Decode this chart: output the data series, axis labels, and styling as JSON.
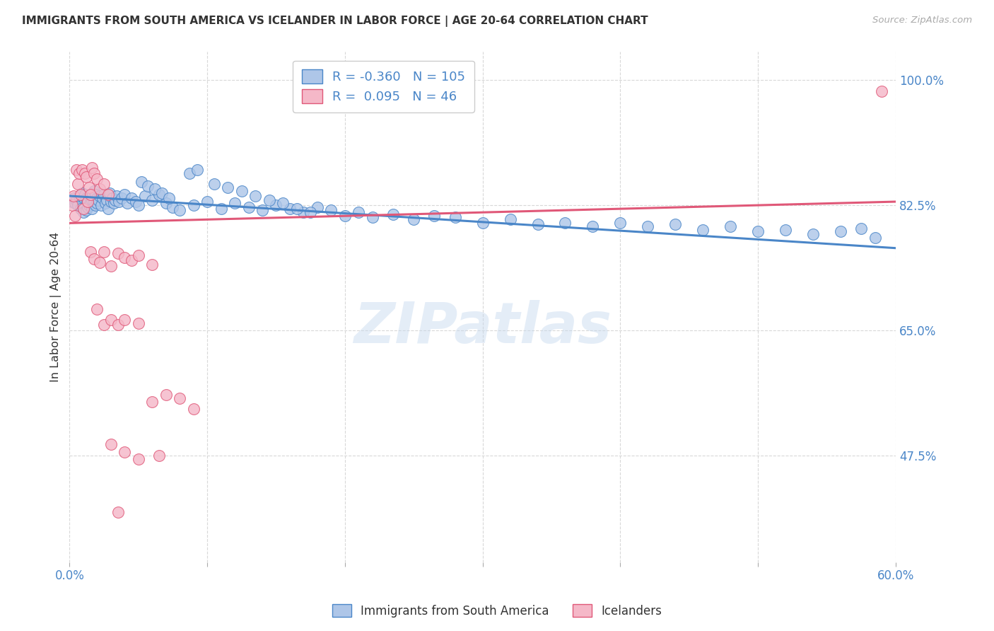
{
  "title": "IMMIGRANTS FROM SOUTH AMERICA VS ICELANDER IN LABOR FORCE | AGE 20-64 CORRELATION CHART",
  "source": "Source: ZipAtlas.com",
  "ylabel": "In Labor Force | Age 20-64",
  "legend_labels": [
    "Immigrants from South America",
    "Icelanders"
  ],
  "r_blue": -0.36,
  "n_blue": 105,
  "r_pink": 0.095,
  "n_pink": 46,
  "blue_color": "#aec6e8",
  "pink_color": "#f5b8c8",
  "blue_line_color": "#4a86c8",
  "pink_line_color": "#e05878",
  "axis_color": "#4a86c8",
  "title_color": "#333333",
  "grid_color": "#d8d8d8",
  "watermark": "ZIPatlas",
  "xlim": [
    0.0,
    0.6
  ],
  "ylim": [
    0.325,
    1.04
  ],
  "yticks": [
    0.475,
    0.65,
    0.825,
    1.0
  ],
  "ytick_labels": [
    "47.5%",
    "65.0%",
    "82.5%",
    "100.0%"
  ],
  "xticks": [
    0.0,
    0.1,
    0.2,
    0.3,
    0.4,
    0.5,
    0.6
  ],
  "blue_scatter_x": [
    0.002,
    0.003,
    0.004,
    0.005,
    0.006,
    0.007,
    0.008,
    0.009,
    0.01,
    0.01,
    0.011,
    0.012,
    0.012,
    0.013,
    0.013,
    0.014,
    0.014,
    0.015,
    0.015,
    0.016,
    0.016,
    0.017,
    0.017,
    0.018,
    0.018,
    0.019,
    0.019,
    0.02,
    0.02,
    0.021,
    0.022,
    0.023,
    0.024,
    0.025,
    0.026,
    0.027,
    0.028,
    0.029,
    0.03,
    0.031,
    0.032,
    0.033,
    0.034,
    0.036,
    0.038,
    0.04,
    0.042,
    0.045,
    0.048,
    0.05,
    0.055,
    0.06,
    0.065,
    0.07,
    0.075,
    0.08,
    0.09,
    0.1,
    0.11,
    0.12,
    0.13,
    0.14,
    0.15,
    0.16,
    0.17,
    0.18,
    0.19,
    0.2,
    0.21,
    0.22,
    0.235,
    0.25,
    0.265,
    0.28,
    0.3,
    0.32,
    0.34,
    0.36,
    0.38,
    0.4,
    0.42,
    0.44,
    0.46,
    0.48,
    0.5,
    0.52,
    0.54,
    0.56,
    0.575,
    0.585,
    0.087,
    0.093,
    0.105,
    0.115,
    0.125,
    0.135,
    0.145,
    0.155,
    0.165,
    0.175,
    0.052,
    0.057,
    0.062,
    0.067,
    0.072
  ],
  "blue_scatter_y": [
    0.83,
    0.835,
    0.828,
    0.832,
    0.825,
    0.838,
    0.82,
    0.842,
    0.815,
    0.836,
    0.84,
    0.818,
    0.835,
    0.83,
    0.822,
    0.838,
    0.825,
    0.835,
    0.828,
    0.832,
    0.82,
    0.838,
    0.842,
    0.83,
    0.845,
    0.825,
    0.84,
    0.835,
    0.828,
    0.832,
    0.838,
    0.825,
    0.835,
    0.84,
    0.828,
    0.832,
    0.82,
    0.842,
    0.83,
    0.835,
    0.828,
    0.832,
    0.838,
    0.83,
    0.835,
    0.84,
    0.828,
    0.835,
    0.83,
    0.825,
    0.838,
    0.832,
    0.84,
    0.828,
    0.822,
    0.818,
    0.825,
    0.83,
    0.82,
    0.828,
    0.822,
    0.818,
    0.825,
    0.82,
    0.815,
    0.822,
    0.818,
    0.81,
    0.815,
    0.808,
    0.812,
    0.805,
    0.81,
    0.808,
    0.8,
    0.805,
    0.798,
    0.8,
    0.795,
    0.8,
    0.795,
    0.798,
    0.79,
    0.795,
    0.788,
    0.79,
    0.785,
    0.788,
    0.792,
    0.78,
    0.87,
    0.875,
    0.855,
    0.85,
    0.845,
    0.838,
    0.832,
    0.828,
    0.82,
    0.815,
    0.858,
    0.852,
    0.848,
    0.842,
    0.835
  ],
  "pink_scatter_x": [
    0.002,
    0.003,
    0.004,
    0.005,
    0.006,
    0.007,
    0.008,
    0.009,
    0.01,
    0.011,
    0.012,
    0.013,
    0.014,
    0.015,
    0.016,
    0.018,
    0.02,
    0.022,
    0.025,
    0.028,
    0.015,
    0.018,
    0.022,
    0.025,
    0.03,
    0.035,
    0.04,
    0.045,
    0.05,
    0.06,
    0.02,
    0.025,
    0.03,
    0.035,
    0.04,
    0.05,
    0.06,
    0.07,
    0.08,
    0.09,
    0.03,
    0.04,
    0.05,
    0.065,
    0.035,
    0.59
  ],
  "pink_scatter_y": [
    0.825,
    0.838,
    0.81,
    0.875,
    0.855,
    0.87,
    0.84,
    0.875,
    0.82,
    0.87,
    0.865,
    0.83,
    0.85,
    0.84,
    0.878,
    0.87,
    0.862,
    0.848,
    0.855,
    0.84,
    0.76,
    0.75,
    0.745,
    0.76,
    0.74,
    0.758,
    0.752,
    0.748,
    0.755,
    0.742,
    0.68,
    0.658,
    0.665,
    0.658,
    0.665,
    0.66,
    0.55,
    0.56,
    0.555,
    0.54,
    0.49,
    0.48,
    0.47,
    0.475,
    0.395,
    0.985
  ],
  "blue_trendline_x": [
    0.0,
    0.6
  ],
  "blue_trendline_y": [
    0.838,
    0.765
  ],
  "pink_trendline_x": [
    0.0,
    0.6
  ],
  "pink_trendline_y": [
    0.8,
    0.83
  ]
}
